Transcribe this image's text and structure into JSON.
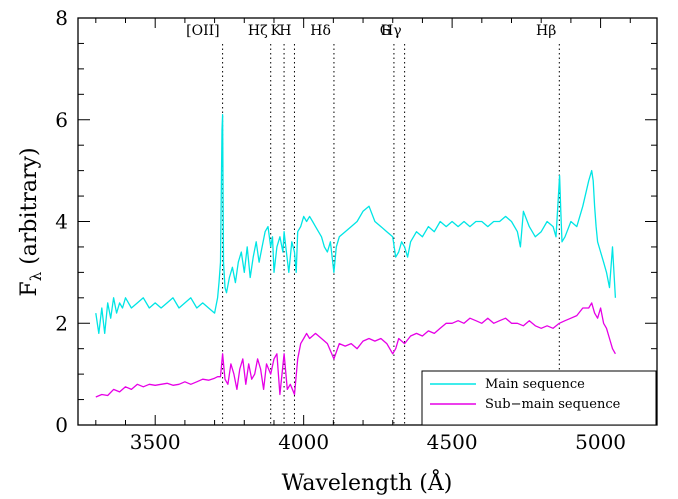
{
  "chart_data": {
    "type": "line",
    "xlabel": "Wavelength (Å)",
    "ylabel_base": "F",
    "ylabel_sub": "λ",
    "ylabel_rest": " (arbitrary)",
    "xlim": [
      3240,
      5190
    ],
    "ylim": [
      0,
      8
    ],
    "xticks": [
      3500,
      4000,
      4500,
      5000
    ],
    "yticks": [
      0,
      2,
      4,
      6,
      8
    ],
    "grid": false,
    "legend_position": "bottom-right",
    "lines": [
      {
        "label": "[OII]",
        "x": 3727
      },
      {
        "label": "Hζ",
        "x": 3889
      },
      {
        "label": "K",
        "x": 3934
      },
      {
        "label": "H",
        "x": 3969
      },
      {
        "label": "Hδ",
        "x": 4102
      },
      {
        "label": "G",
        "x": 4304
      },
      {
        "label": "Hγ",
        "x": 4340
      },
      {
        "label": "Hβ",
        "x": 4861
      }
    ],
    "series": [
      {
        "name": "Main sequence",
        "color": "#00e5e5",
        "x": [
          3300,
          3310,
          3320,
          3330,
          3340,
          3350,
          3360,
          3370,
          3380,
          3390,
          3400,
          3420,
          3440,
          3460,
          3480,
          3500,
          3520,
          3540,
          3560,
          3580,
          3600,
          3620,
          3640,
          3660,
          3680,
          3700,
          3710,
          3715,
          3720,
          3725,
          3727,
          3730,
          3735,
          3740,
          3750,
          3760,
          3770,
          3780,
          3790,
          3800,
          3810,
          3820,
          3830,
          3840,
          3850,
          3860,
          3870,
          3880,
          3889,
          3895,
          3900,
          3910,
          3920,
          3930,
          3934,
          3940,
          3950,
          3960,
          3969,
          3975,
          3980,
          3990,
          4000,
          4010,
          4020,
          4030,
          4040,
          4050,
          4060,
          4070,
          4080,
          4090,
          4102,
          4110,
          4120,
          4140,
          4160,
          4180,
          4200,
          4220,
          4240,
          4260,
          4280,
          4300,
          4310,
          4320,
          4330,
          4340,
          4350,
          4360,
          4380,
          4400,
          4420,
          4440,
          4460,
          4480,
          4500,
          4520,
          4540,
          4560,
          4580,
          4600,
          4620,
          4640,
          4660,
          4680,
          4700,
          4720,
          4730,
          4740,
          4760,
          4780,
          4800,
          4820,
          4840,
          4850,
          4858,
          4862,
          4866,
          4870,
          4880,
          4900,
          4920,
          4940,
          4960,
          4970,
          4975,
          4980,
          4985,
          4990,
          5000,
          5010,
          5020,
          5030,
          5040,
          5050
        ],
        "y": [
          2.2,
          1.8,
          2.3,
          1.8,
          2.4,
          2.1,
          2.5,
          2.2,
          2.4,
          2.3,
          2.5,
          2.3,
          2.4,
          2.5,
          2.3,
          2.4,
          2.3,
          2.4,
          2.5,
          2.3,
          2.4,
          2.5,
          2.3,
          2.4,
          2.3,
          2.2,
          2.5,
          2.8,
          3.2,
          5.8,
          6.1,
          3.2,
          2.7,
          2.6,
          2.9,
          3.1,
          2.8,
          3.2,
          3.4,
          3.0,
          3.5,
          2.9,
          3.3,
          3.6,
          3.2,
          3.5,
          3.8,
          3.9,
          3.5,
          3.7,
          3.0,
          3.5,
          3.7,
          3.4,
          3.8,
          3.5,
          3.0,
          3.6,
          3.4,
          3.0,
          3.8,
          3.9,
          4.1,
          4.0,
          4.1,
          4.0,
          3.9,
          3.8,
          3.7,
          3.5,
          3.4,
          3.6,
          3.0,
          3.5,
          3.7,
          3.8,
          3.9,
          4.0,
          4.2,
          4.3,
          4.0,
          3.9,
          3.8,
          3.7,
          3.3,
          3.4,
          3.6,
          3.5,
          3.3,
          3.6,
          3.8,
          3.7,
          3.9,
          3.8,
          4.0,
          3.9,
          4.0,
          3.9,
          4.0,
          3.9,
          4.0,
          4.0,
          3.9,
          4.0,
          4.0,
          4.1,
          4.0,
          3.8,
          3.5,
          4.2,
          3.9,
          3.7,
          3.8,
          4.0,
          3.9,
          3.7,
          4.5,
          4.9,
          4.2,
          3.6,
          3.7,
          4.0,
          3.9,
          4.3,
          4.8,
          5.0,
          4.8,
          4.3,
          3.9,
          3.6,
          3.4,
          3.2,
          3.0,
          2.7,
          3.5,
          2.5
        ]
      },
      {
        "name": "Sub−main sequence",
        "color": "#e600e6",
        "x": [
          3300,
          3320,
          3340,
          3360,
          3380,
          3400,
          3420,
          3440,
          3460,
          3480,
          3500,
          3520,
          3540,
          3560,
          3580,
          3600,
          3620,
          3640,
          3660,
          3680,
          3700,
          3710,
          3720,
          3727,
          3735,
          3745,
          3755,
          3765,
          3775,
          3785,
          3795,
          3805,
          3815,
          3825,
          3835,
          3845,
          3855,
          3865,
          3875,
          3889,
          3900,
          3910,
          3920,
          3934,
          3945,
          3955,
          3969,
          3980,
          3990,
          4000,
          4010,
          4020,
          4040,
          4060,
          4080,
          4102,
          4120,
          4140,
          4160,
          4180,
          4200,
          4220,
          4240,
          4260,
          4280,
          4300,
          4310,
          4320,
          4340,
          4360,
          4380,
          4400,
          4420,
          4440,
          4460,
          4480,
          4500,
          4520,
          4540,
          4560,
          4580,
          4600,
          4620,
          4640,
          4660,
          4680,
          4700,
          4720,
          4740,
          4760,
          4780,
          4800,
          4820,
          4840,
          4861,
          4880,
          4900,
          4920,
          4940,
          4960,
          4970,
          4980,
          4990,
          5000,
          5010,
          5020,
          5030,
          5040,
          5050
        ],
        "y": [
          0.55,
          0.6,
          0.58,
          0.7,
          0.65,
          0.75,
          0.7,
          0.8,
          0.75,
          0.8,
          0.78,
          0.8,
          0.82,
          0.78,
          0.8,
          0.85,
          0.8,
          0.85,
          0.9,
          0.88,
          0.92,
          0.95,
          0.95,
          1.4,
          0.9,
          0.8,
          1.2,
          1.0,
          0.7,
          1.1,
          1.3,
          0.8,
          1.2,
          0.9,
          1.0,
          1.3,
          1.1,
          0.7,
          1.2,
          1.0,
          1.3,
          1.4,
          0.6,
          1.4,
          0.7,
          0.8,
          0.6,
          1.3,
          1.6,
          1.7,
          1.8,
          1.7,
          1.8,
          1.7,
          1.6,
          1.3,
          1.6,
          1.55,
          1.6,
          1.5,
          1.65,
          1.7,
          1.65,
          1.7,
          1.6,
          1.4,
          1.5,
          1.7,
          1.6,
          1.75,
          1.8,
          1.75,
          1.85,
          1.8,
          1.9,
          2.0,
          2.0,
          2.05,
          2.0,
          2.1,
          2.05,
          2.0,
          2.1,
          2.0,
          2.05,
          2.1,
          2.0,
          2.0,
          1.95,
          2.05,
          1.95,
          1.9,
          1.95,
          1.9,
          2.0,
          2.05,
          2.1,
          2.15,
          2.3,
          2.3,
          2.4,
          2.2,
          2.1,
          2.3,
          2.0,
          1.9,
          1.7,
          1.5,
          1.4
        ]
      }
    ]
  }
}
